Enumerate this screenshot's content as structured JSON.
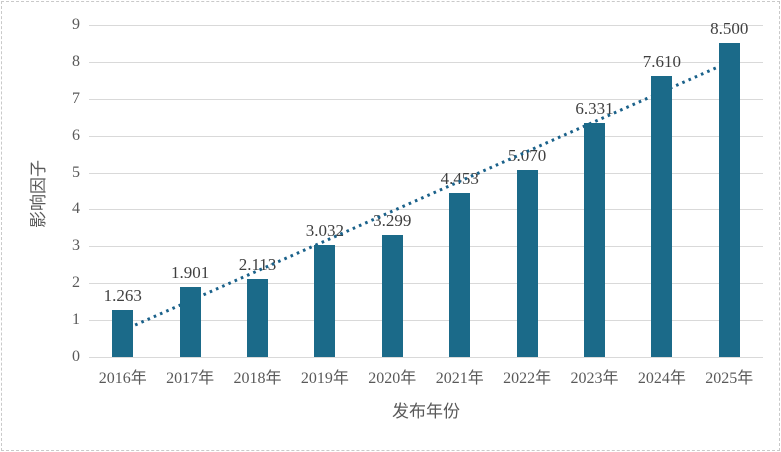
{
  "chart_data": {
    "type": "bar",
    "title": "",
    "categories": [
      "2016年",
      "2017年",
      "2018年",
      "2019年",
      "2020年",
      "2021年",
      "2022年",
      "2023年",
      "2024年",
      "2025年"
    ],
    "values": [
      1.263,
      1.901,
      2.113,
      3.032,
      3.299,
      4.453,
      5.07,
      6.331,
      7.61,
      8.5
    ],
    "value_labels": [
      "1.263",
      "1.901",
      "2.113",
      "3.032",
      "3.299",
      "4.453",
      "5.070",
      "6.331",
      "7.610",
      "8.500"
    ],
    "xlabel": "发布年份",
    "ylabel": "影响因子",
    "ylim": [
      0,
      9
    ],
    "yticks": [
      0,
      1,
      2,
      3,
      4,
      5,
      6,
      7,
      8,
      9
    ],
    "grid": true,
    "legend": "none",
    "trendline": {
      "type": "linear",
      "style": "dotted"
    },
    "colors": {
      "bar": "#1B6A89",
      "trendline": "#1A618A",
      "gridline": "#D9D9D9",
      "tick_text": "#595959",
      "data_label_text": "#3F3F3F",
      "axis_title_text": "#595959",
      "figure_border": "#C9C9C9"
    }
  }
}
